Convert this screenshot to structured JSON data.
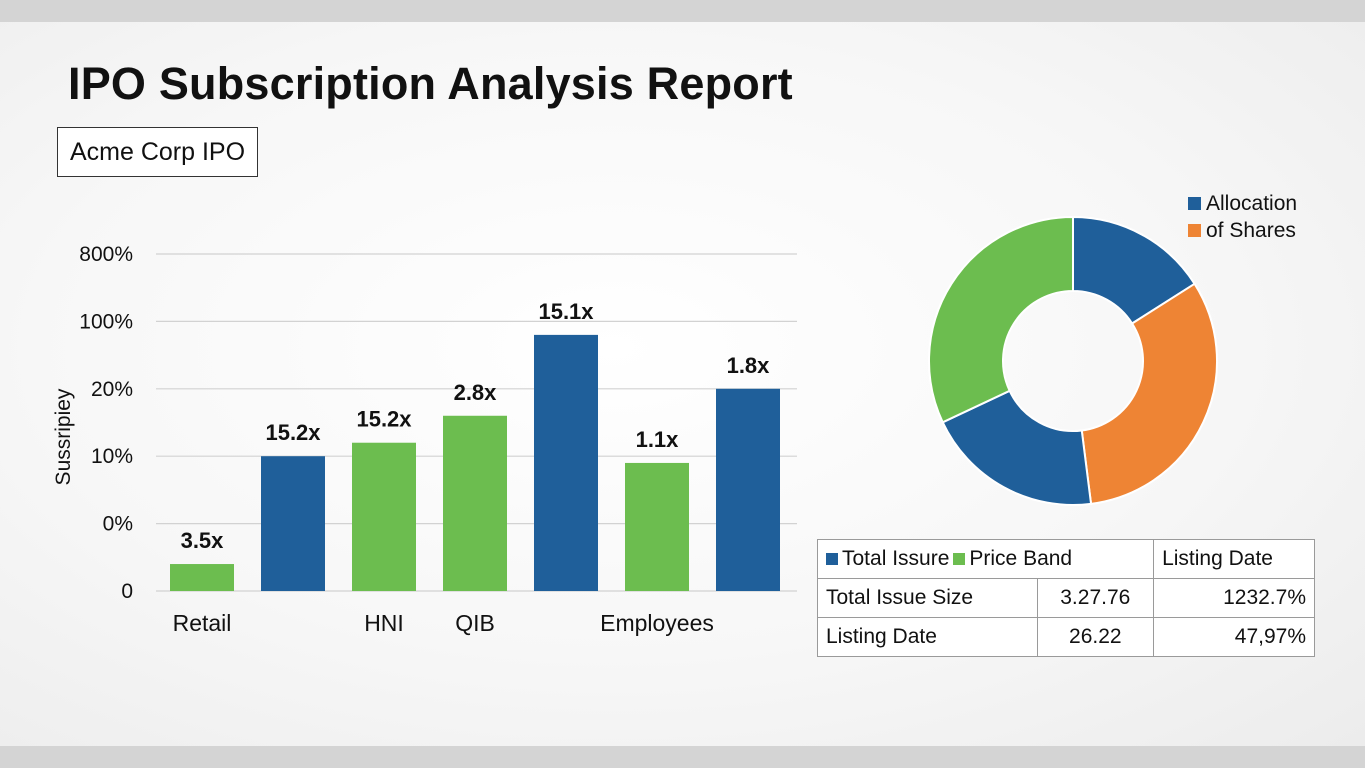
{
  "report": {
    "title": "IPO Subscription Analysis Report",
    "subtitle": "Acme Corp IPO"
  },
  "colors": {
    "blue": "#1f5f9a",
    "green": "#6cbd4f",
    "orange": "#ee8434"
  },
  "chart_data": [
    {
      "type": "bar",
      "ylabel": "Sussripiey",
      "yticks": [
        "800%",
        "100%",
        "20%",
        "10%",
        "0%",
        "0"
      ],
      "xlabels": [
        "Retail",
        "",
        "HNI",
        "QIB",
        "",
        "Employees",
        ""
      ],
      "values": [
        0.4,
        2.0,
        2.2,
        2.6,
        3.8,
        1.9,
        3.0
      ],
      "data_labels": [
        "3.5x",
        "15.2x",
        "15.2x",
        "2.8x",
        "15.1x",
        "1.1x",
        "1.8x"
      ],
      "bar_colors": [
        "green",
        "blue",
        "green",
        "green",
        "blue",
        "green",
        "blue"
      ],
      "y_axis_position_range": [
        0,
        5
      ],
      "grid": true
    },
    {
      "type": "pie",
      "donut": true,
      "legend": [
        "Allocation",
        "of Shares"
      ],
      "legend_colors": [
        "blue",
        "orange"
      ],
      "legend_placement": "top-right",
      "slices": [
        {
          "value": 16,
          "color": "blue"
        },
        {
          "value": 32,
          "color": "orange"
        },
        {
          "value": 20,
          "color": "blue"
        },
        {
          "value": 32,
          "color": "green"
        }
      ]
    }
  ],
  "table": {
    "header": [
      {
        "parts": [
          {
            "text": "Total Issure",
            "color": "blue"
          },
          {
            "text": "Price Band",
            "color": "green"
          }
        ]
      },
      {
        "text": "Listing Date"
      }
    ],
    "rows": [
      [
        "Total Issue Size",
        "3.27.76",
        "1232.7%"
      ],
      [
        "Listing Date",
        "26.22",
        "47,97%"
      ]
    ]
  }
}
